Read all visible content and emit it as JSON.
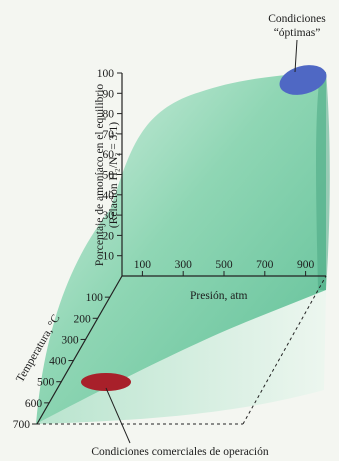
{
  "chart_data": {
    "type": "area",
    "title": "",
    "ylabel_line1": "Porcentaje de amoníaco en el equilibrio",
    "ylabel_line2": "(Relación H₂/N₂ = 3:1)",
    "xlabel": "Presión, atm",
    "zlabel": "Temperatura, °C",
    "y_ticks": [
      10,
      20,
      30,
      40,
      50,
      60,
      70,
      80,
      90,
      100
    ],
    "x_ticks": [
      100,
      300,
      500,
      700,
      900
    ],
    "z_ticks": [
      100,
      200,
      300,
      400,
      500,
      600,
      700
    ],
    "ylim": [
      0,
      100
    ],
    "xlim": [
      0,
      1000
    ],
    "zlim": [
      0,
      700
    ],
    "optimal_region": {
      "label_line1": "Condiciones",
      "label_line2": "“óptimas”",
      "pressure_atm": [
        800,
        1000
      ],
      "temperature_c": [
        100,
        200
      ],
      "ammonia_percent": [
        90,
        100
      ],
      "color": "#4f68c4"
    },
    "commercial_region": {
      "label": "Condiciones comerciales de operación",
      "pressure_atm": [
        150,
        350
      ],
      "temperature_c": [
        450,
        550
      ],
      "color": "#a8202a"
    },
    "surface_color": "#86d4b2"
  }
}
